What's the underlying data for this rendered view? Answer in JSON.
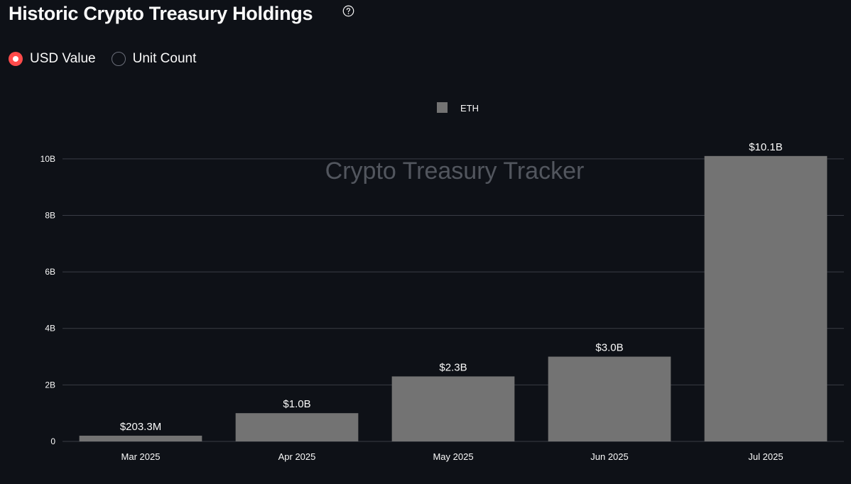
{
  "header": {
    "title": "Historic Crypto Treasury Holdings",
    "help_icon": "question-circle-icon"
  },
  "toggle": {
    "options": [
      {
        "label": "USD Value",
        "selected": true
      },
      {
        "label": "Unit Count",
        "selected": false
      }
    ]
  },
  "colors": {
    "background": "#0e1117",
    "bar": "#737373",
    "accent": "#ff4b4b",
    "grid": "#3a3d45"
  },
  "chart_data": {
    "type": "bar",
    "watermark": "Crypto Treasury Tracker",
    "legend": {
      "position": "top-center"
    },
    "categories": [
      "Mar 2025",
      "Apr 2025",
      "May 2025",
      "Jun 2025",
      "Jul 2025"
    ],
    "series": [
      {
        "name": "ETH",
        "values": [
          203300000,
          1000000000,
          2300000000,
          3000000000,
          10100000000
        ],
        "labels": [
          "$203.3M",
          "$1.0B",
          "$2.3B",
          "$3.0B",
          "$10.1B"
        ]
      }
    ],
    "yticks": [
      {
        "value": 0,
        "label": "0"
      },
      {
        "value": 2000000000,
        "label": "2B"
      },
      {
        "value": 4000000000,
        "label": "4B"
      },
      {
        "value": 6000000000,
        "label": "6B"
      },
      {
        "value": 8000000000,
        "label": "8B"
      },
      {
        "value": 10000000000,
        "label": "10B"
      }
    ],
    "ylim": [
      0,
      10000000000
    ],
    "grid": true
  }
}
